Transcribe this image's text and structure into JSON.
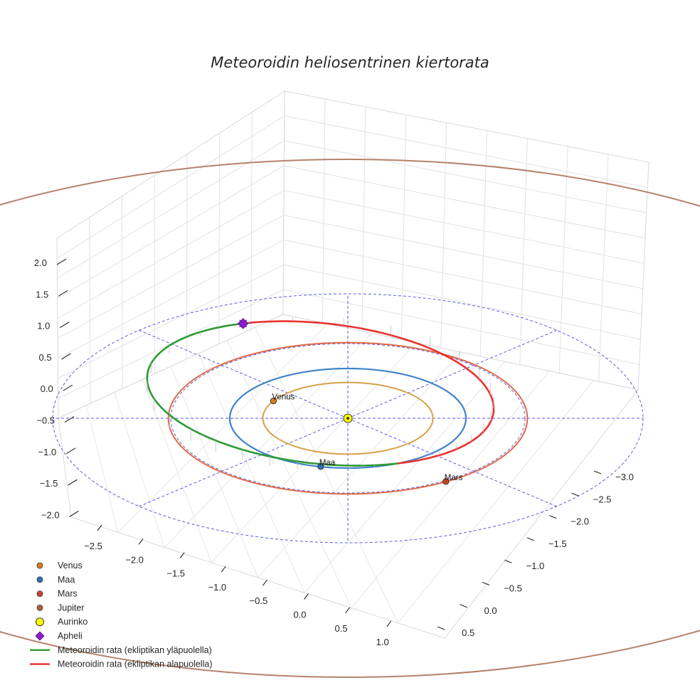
{
  "chart_data": {
    "type": "line3d",
    "title": "Meteoroidin heliosentrinen kiertorata",
    "xlabel": "",
    "ylabel": "",
    "zlabel": "",
    "xticks": [
      "−2.5",
      "−2.0",
      "−1.5",
      "−1.0",
      "−0.5",
      "0.0",
      "0.5",
      "1.0"
    ],
    "yticks": [
      "−3.0",
      "−2.5",
      "−2.0",
      "−1.5",
      "−1.0",
      "−0.5",
      "0.0",
      "0.5"
    ],
    "zticks": [
      "2.0",
      "1.5",
      "1.0",
      "0.5",
      "0.0",
      "−0.5",
      "−1.0",
      "−1.5",
      "−2.0"
    ],
    "xlim": [
      -2.9,
      1.3
    ],
    "ylim": [
      -3.3,
      0.7
    ],
    "zlim": [
      -2.2,
      2.3
    ],
    "grid": true,
    "legend_position": "bottom-left",
    "reference_grid": {
      "circle_radii_au": [
        1.5,
        2.5
      ],
      "radial_lines": 8
    },
    "planet_orbits": [
      {
        "name": "Venus",
        "radius_au": 0.72,
        "color": "#d4a24a"
      },
      {
        "name": "Maa",
        "radius_au": 1.0,
        "color": "#3f84c9"
      },
      {
        "name": "Mars",
        "radius_au": 1.52,
        "color": "#e06a47"
      },
      {
        "name": "Jupiter",
        "radius_au": 5.2,
        "color": "#b5826a"
      }
    ],
    "planets": [
      {
        "name": "Venus",
        "label": "Venus",
        "x_au": -0.63,
        "y_au": -0.35,
        "color": "#d97d1b"
      },
      {
        "name": "Maa",
        "label": "Maa",
        "x_au": -0.23,
        "y_au": 0.97,
        "color": "#2f6fb0"
      },
      {
        "name": "Mars",
        "label": "Mars",
        "x_au": 0.83,
        "y_au": 1.27,
        "color": "#c8452a"
      }
    ],
    "sun": {
      "name": "Aurinko",
      "x_au": 0,
      "y_au": 0,
      "color": "#ffff00"
    },
    "meteoroid_orbit": {
      "semi_major_au": 1.55,
      "eccentricity": 0.355,
      "perihelion_dir_deg": 65,
      "inclination_deg": 8,
      "node_dir_deg": 65,
      "aphelion_label": "Apheli"
    },
    "series": [
      {
        "name": "Meteoroidin rata (ekliptikan yläpuolella)",
        "color": "#2e9a34"
      },
      {
        "name": "Meteoroidin rata (ekliptikan alapuolella)",
        "color": "#e8322e"
      }
    ],
    "legend": [
      {
        "label": "Venus",
        "marker": "circle",
        "color": "#d97d1b"
      },
      {
        "label": "Maa",
        "marker": "circle",
        "color": "#2f6fb0"
      },
      {
        "label": "Mars",
        "marker": "circle",
        "color": "#c8452a"
      },
      {
        "label": "Jupiter",
        "marker": "circle",
        "color": "#b35f33"
      },
      {
        "label": "Aurinko",
        "marker": "big-circle",
        "color": "#ffff00"
      },
      {
        "label": "Apheli",
        "marker": "diamond",
        "color": "#8a1fc9"
      },
      {
        "label": "Meteoroidin rata (ekliptikan yläpuolella)",
        "marker": "line",
        "color": "#2e9a34"
      },
      {
        "label": "Meteoroidin rata (ekliptikan alapuolella)",
        "marker": "line",
        "color": "#e8322e"
      }
    ]
  }
}
